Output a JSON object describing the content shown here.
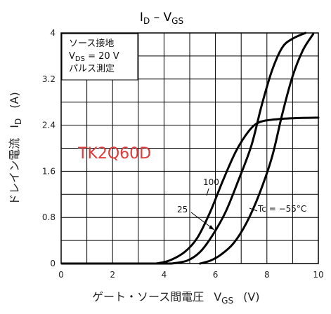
{
  "chart_data": {
    "type": "line",
    "title": "I D – V GS",
    "title_parts": {
      "main1": "I",
      "sub1": "D",
      "dash": " – ",
      "main2": "V",
      "sub2": "GS"
    },
    "xlabel": {
      "text": "ゲート・ソース間電圧",
      "sym": "V",
      "sub": "GS",
      "unit": "(V)"
    },
    "ylabel": {
      "text": "ドレイン電流",
      "sym": "I",
      "sub": "D",
      "unit": "(A)"
    },
    "xlim": [
      0,
      10
    ],
    "ylim": [
      0,
      4
    ],
    "x_ticks": [
      "0",
      "2",
      "4",
      "6",
      "8",
      "10"
    ],
    "y_ticks": [
      "0",
      "0.8",
      "1.6",
      "2.4",
      "3.2",
      "4"
    ],
    "grid": true,
    "conditions": [
      "ソース接地",
      "V",
      "DS",
      " = 20 V",
      "パルス測定"
    ],
    "watermark": "TK2Q60D",
    "series": [
      {
        "name": "Tc = −55°C",
        "values": [
          [
            5.4,
            0
          ],
          [
            5.8,
            0.05
          ],
          [
            6.2,
            0.15
          ],
          [
            6.7,
            0.35
          ],
          [
            7.2,
            0.7
          ],
          [
            7.7,
            1.2
          ],
          [
            8.2,
            1.85
          ],
          [
            8.6,
            2.6
          ],
          [
            9.0,
            3.25
          ],
          [
            9.4,
            3.7
          ],
          [
            9.8,
            3.98
          ]
        ]
      },
      {
        "name": "25",
        "values": [
          [
            4.3,
            0
          ],
          [
            4.9,
            0.05
          ],
          [
            5.4,
            0.2
          ],
          [
            5.9,
            0.5
          ],
          [
            6.4,
            0.9
          ],
          [
            6.9,
            1.45
          ],
          [
            7.4,
            2.05
          ],
          [
            7.8,
            2.75
          ],
          [
            8.2,
            3.35
          ],
          [
            8.6,
            3.75
          ],
          [
            9.0,
            3.9
          ],
          [
            9.5,
            4.0
          ]
        ]
      },
      {
        "name": "100",
        "values": [
          [
            3.7,
            0
          ],
          [
            4.2,
            0.05
          ],
          [
            4.8,
            0.2
          ],
          [
            5.3,
            0.45
          ],
          [
            5.8,
            0.9
          ],
          [
            6.3,
            1.45
          ],
          [
            6.8,
            1.95
          ],
          [
            7.3,
            2.3
          ],
          [
            7.7,
            2.45
          ],
          [
            8.3,
            2.5
          ],
          [
            9.0,
            2.52
          ],
          [
            10.0,
            2.53
          ]
        ]
      }
    ]
  }
}
